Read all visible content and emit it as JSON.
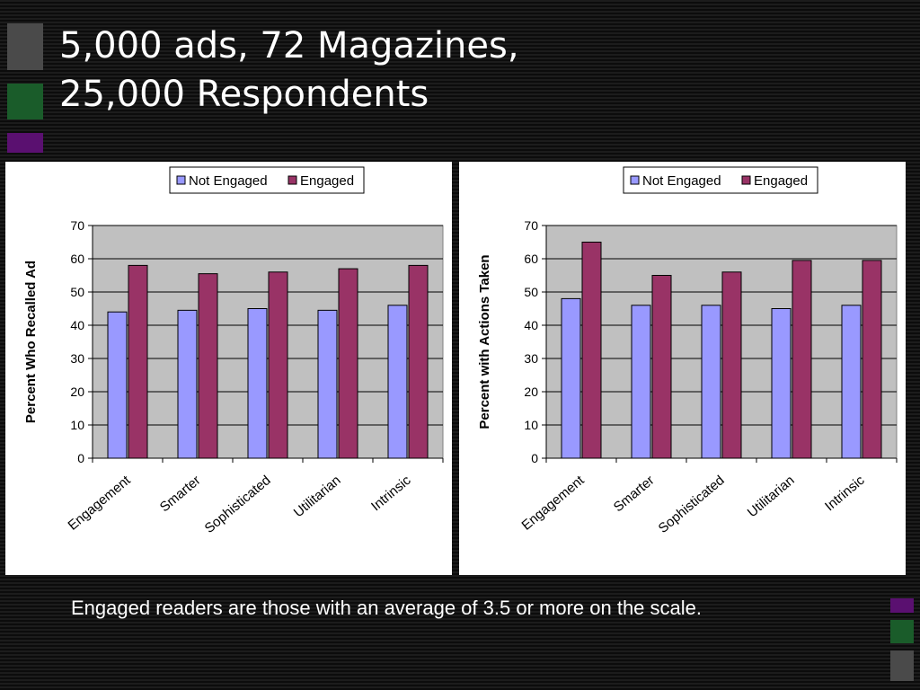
{
  "slide": {
    "title_line1": "5,000 ads, 72 Magazines,",
    "title_line2": "25,000 Respondents",
    "caption": "Engaged readers are those with an average of 3.5 or more on the scale."
  },
  "colors": {
    "not_engaged": "#9999FF",
    "engaged": "#993366",
    "plot_background": "#C0C0C0",
    "accent_gray": "#4a4a4a",
    "accent_green": "#1a5c2a",
    "accent_purple": "#5a1070"
  },
  "chart_data": [
    {
      "type": "bar",
      "categories": [
        "Engagement",
        "Smarter",
        "Sophisticated",
        "Utilitarian",
        "Intrinsic"
      ],
      "series": [
        {
          "name": "Not Engaged",
          "values": [
            44,
            44.5,
            45,
            44.5,
            46
          ]
        },
        {
          "name": "Engaged",
          "values": [
            58,
            55.5,
            56,
            57,
            58
          ]
        }
      ],
      "title": "",
      "xlabel": "",
      "ylabel": "Percent Who Recalled Ad",
      "ylim": [
        0,
        70
      ],
      "yticks": [
        "0",
        "10",
        "20",
        "30",
        "40",
        "50",
        "60",
        "70"
      ],
      "grid": true,
      "legend": "top"
    },
    {
      "type": "bar",
      "categories": [
        "Engagement",
        "Smarter",
        "Sophisticated",
        "Utilitarian",
        "Intrinsic"
      ],
      "series": [
        {
          "name": "Not Engaged",
          "values": [
            48,
            46,
            46,
            45,
            46
          ]
        },
        {
          "name": "Engaged",
          "values": [
            65,
            55,
            56,
            59.5,
            59.5
          ]
        }
      ],
      "title": "",
      "xlabel": "",
      "ylabel": "Percent with Actions Taken",
      "ylim": [
        0,
        70
      ],
      "yticks": [
        "0",
        "10",
        "20",
        "30",
        "40",
        "50",
        "60",
        "70"
      ],
      "grid": true,
      "legend": "top"
    }
  ]
}
